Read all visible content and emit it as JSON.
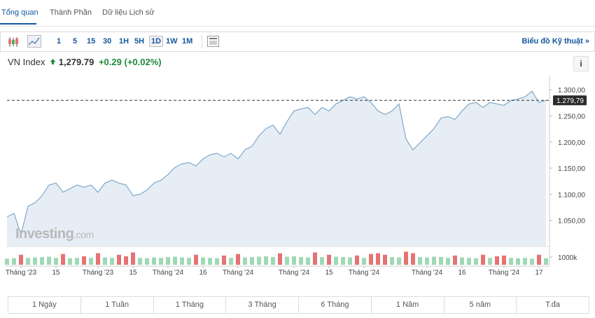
{
  "tabs": [
    "Tổng quan",
    "Thành Phần",
    "Dữ liệu Lịch sử"
  ],
  "toolbar": {
    "intervals": [
      "1",
      "5",
      "15",
      "30",
      "1H",
      "5H",
      "1D",
      "1W",
      "1M"
    ],
    "selected": "1D",
    "technical_link": "Biểu đồ Kỹ thuật »"
  },
  "header": {
    "name": "VN Index",
    "price": "1,279.79",
    "change": "+0.29",
    "change_pct": "(+0.02%)",
    "info": "i"
  },
  "ranges": [
    "1 Ngày",
    "1 Tuần",
    "1 Tháng",
    "3 Tháng",
    "6 Tháng",
    "1 Năm",
    "5 năm",
    "T.đa"
  ],
  "chart_data": {
    "type": "line",
    "watermark": [
      "Investing",
      ".com"
    ],
    "xlim": [
      0,
      77
    ],
    "xticks": [
      {
        "value": 2,
        "label": "Tháng '23"
      },
      {
        "value": 7,
        "label": "15"
      },
      {
        "value": 13,
        "label": "Tháng '23"
      },
      {
        "value": 18,
        "label": "15"
      },
      {
        "value": 23,
        "label": "Tháng '24"
      },
      {
        "value": 28,
        "label": "16"
      },
      {
        "value": 33,
        "label": "Tháng '24"
      },
      {
        "value": 41,
        "label": "Tháng '24"
      },
      {
        "value": 46,
        "label": "15"
      },
      {
        "value": 51,
        "label": "Tháng '24"
      },
      {
        "value": 60,
        "label": "Tháng '24"
      },
      {
        "value": 65,
        "label": "16"
      },
      {
        "value": 71,
        "label": "Tháng '24"
      },
      {
        "value": 76,
        "label": "17"
      }
    ],
    "ylim": [
      1000,
      1327
    ],
    "yticks": [
      {
        "value": 1300,
        "label": "1.300,00"
      },
      {
        "value": 1250,
        "label": "1.250,00"
      },
      {
        "value": 1200,
        "label": "1.200,00"
      },
      {
        "value": 1150,
        "label": "1.150,00"
      },
      {
        "value": 1100,
        "label": "1.100,00"
      },
      {
        "value": 1050,
        "label": "1.050,00"
      }
    ],
    "color": "#7ea9cc",
    "fill_color": "#e6edf5",
    "values": [
      1056.8,
      1063.5,
      1023,
      1077,
      1083.8,
      1097.3,
      1117.6,
      1121.6,
      1104,
      1110.8,
      1117.6,
      1113.5,
      1117.6,
      1104,
      1121.6,
      1127,
      1121.6,
      1117.6,
      1097.3,
      1100,
      1108.1,
      1121.6,
      1127,
      1137.8,
      1151.4,
      1158.1,
      1160.8,
      1154.1,
      1167.6,
      1175.7,
      1178.4,
      1171.6,
      1178.4,
      1167.6,
      1185.1,
      1191.9,
      1212.2,
      1225.7,
      1232.4,
      1214.9,
      1239.2,
      1259.5,
      1263.5,
      1266.2,
      1252.7,
      1266.2,
      1259.5,
      1273,
      1279.7,
      1286.5,
      1282.4,
      1286.5,
      1275.7,
      1259.5,
      1252.7,
      1259.5,
      1273,
      1205.4,
      1185.1,
      1198.6,
      1212.2,
      1225.7,
      1245.9,
      1248.6,
      1243.2,
      1259.5,
      1273,
      1275.7,
      1266.2,
      1275.7,
      1273,
      1270.3,
      1279.7,
      1282.4,
      1286.5,
      1297.3,
      1275.7,
      1279.79
    ],
    "last_price": {
      "value": 1279.79,
      "label": "1.279,79"
    },
    "y2lim": [
      0,
      2400
    ],
    "y2ticks": [
      {
        "value": 1000,
        "label": "1000k"
      }
    ],
    "volume": {
      "up_color": "#9fd8b5",
      "down_color": "#e57373",
      "values": [
        800,
        850,
        1300,
        900,
        950,
        1000,
        1050,
        900,
        1400,
        850,
        900,
        1100,
        900,
        1500,
        950,
        900,
        1300,
        1100,
        1600,
        900,
        850,
        950,
        900,
        1000,
        1050,
        950,
        900,
        1300,
        950,
        900,
        850,
        1200,
        900,
        1400,
        950,
        1000,
        1050,
        1100,
        1000,
        1500,
        1050,
        1100,
        1000,
        950,
        1600,
        1000,
        1300,
        1050,
        1000,
        950,
        1200,
        900,
        1400,
        1500,
        1300,
        1000,
        950,
        1700,
        1500,
        1000,
        950,
        1050,
        1000,
        900,
        1200,
        950,
        900,
        850,
        1300,
        900,
        1100,
        1200,
        900,
        850,
        900,
        800,
        1300,
        850
      ]
    }
  }
}
